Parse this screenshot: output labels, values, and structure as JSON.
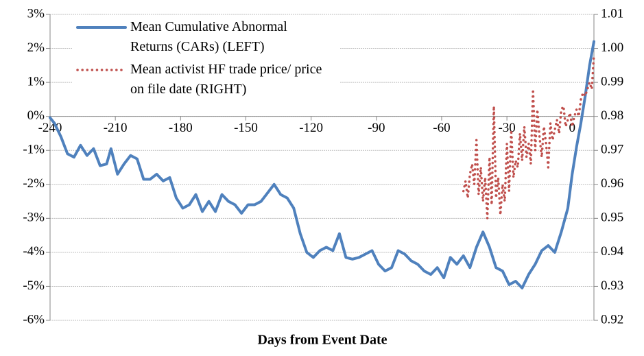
{
  "chart_data": {
    "type": "line",
    "x_label": "Days from Event Date",
    "xlim": [
      -240,
      10
    ],
    "xticks": [
      -240,
      -210,
      -180,
      -150,
      -120,
      -90,
      -60,
      -30,
      0
    ],
    "ylim": [
      -6,
      3
    ],
    "yticks": [
      {
        "value": -6,
        "label": "-6%"
      },
      {
        "value": -5,
        "label": "-5%"
      },
      {
        "value": -4,
        "label": "-4%"
      },
      {
        "value": -3,
        "label": "-3%"
      },
      {
        "value": -2,
        "label": "-2%"
      },
      {
        "value": -1,
        "label": "-1%"
      },
      {
        "value": 0,
        "label": "0%"
      },
      {
        "value": 1,
        "label": "1%"
      },
      {
        "value": 2,
        "label": "2%"
      },
      {
        "value": 3,
        "label": "3%"
      }
    ],
    "y2lim": [
      0.92,
      1.01
    ],
    "y2ticks": [
      0.92,
      0.93,
      0.94,
      0.95,
      0.96,
      0.97,
      0.98,
      0.99,
      {
        "value": 1,
        "label": "1.00"
      },
      1.01
    ],
    "grid": true,
    "legend": "upper left",
    "series": [
      {
        "name": "Mean Cumulative Abnormal Returns (CARs) (LEFT)",
        "color": "#4f81bd",
        "dash": "solid",
        "x": [
          -240,
          -238,
          -235,
          -232,
          -229,
          -226,
          -223,
          -220,
          -217,
          -214,
          -212,
          -209,
          -206,
          -203,
          -200,
          -197,
          -194,
          -191,
          -188,
          -185,
          -182,
          -179,
          -176,
          -173,
          -170,
          -167,
          -164,
          -161,
          -158,
          -155,
          -152,
          -149,
          -146,
          -143,
          -140,
          -137,
          -134,
          -131,
          -128,
          -125,
          -122,
          -119,
          -116,
          -113,
          -110,
          -107,
          -104,
          -101,
          -98,
          -95,
          -92,
          -89,
          -86,
          -83,
          -80,
          -77,
          -74,
          -71,
          -68,
          -65,
          -62,
          -59,
          -56,
          -53,
          -50,
          -47,
          -44,
          -41,
          -38,
          -35,
          -32,
          -29,
          -26,
          -23,
          -20,
          -17,
          -14,
          -11,
          -8,
          -5,
          -2,
          0,
          2,
          4,
          6,
          8,
          10
        ],
        "values": [
          -0.04,
          -0.2,
          -0.6,
          -1.1,
          -1.2,
          -0.85,
          -1.15,
          -0.95,
          -1.45,
          -1.4,
          -0.95,
          -1.7,
          -1.4,
          -1.15,
          -1.25,
          -1.85,
          -1.85,
          -1.7,
          -1.9,
          -1.8,
          -2.4,
          -2.7,
          -2.6,
          -2.3,
          -2.8,
          -2.5,
          -2.8,
          -2.3,
          -2.5,
          -2.6,
          -2.85,
          -2.6,
          -2.6,
          -2.5,
          -2.25,
          -2.0,
          -2.3,
          -2.4,
          -2.7,
          -3.45,
          -4.0,
          -4.15,
          -3.95,
          -3.85,
          -3.95,
          -3.45,
          -4.15,
          -4.2,
          -4.15,
          -4.05,
          -3.95,
          -4.35,
          -4.55,
          -4.45,
          -3.95,
          -4.05,
          -4.25,
          -4.35,
          -4.55,
          -4.65,
          -4.45,
          -4.75,
          -4.15,
          -4.35,
          -4.1,
          -4.45,
          -3.85,
          -3.4,
          -3.85,
          -4.45,
          -4.55,
          -4.95,
          -4.85,
          -5.05,
          -4.65,
          -4.35,
          -3.95,
          -3.8,
          -4.0,
          -3.4,
          -2.7,
          -1.7,
          -0.9,
          -0.2,
          0.6,
          1.5,
          2.2
        ]
      },
      {
        "name": "Mean activist HF trade price/ price on file date (RIGHT)",
        "color": "#c0504d",
        "dash": "dotted",
        "axis": "y2",
        "x": [
          -50,
          -49,
          -48,
          -47,
          -46,
          -45,
          -44,
          -43,
          -42,
          -41,
          -40,
          -39,
          -38,
          -37,
          -36,
          -35,
          -34,
          -33,
          -32,
          -31,
          -30,
          -29,
          -28,
          -27,
          -26,
          -25,
          -24,
          -23,
          -22,
          -21,
          -20,
          -19,
          -18,
          -17,
          -16,
          -15,
          -14,
          -13,
          -12,
          -11,
          -10,
          -9,
          -8,
          -7,
          -6,
          -5,
          -4,
          -3,
          -2,
          -1,
          0,
          1,
          2,
          3,
          4,
          5,
          6,
          7,
          8,
          9,
          10
        ],
        "values": [
          0.958,
          0.961,
          0.956,
          0.963,
          0.966,
          0.96,
          0.973,
          0.957,
          0.965,
          0.955,
          0.962,
          0.95,
          0.968,
          0.954,
          0.983,
          0.956,
          0.962,
          0.951,
          0.96,
          0.955,
          0.972,
          0.958,
          0.976,
          0.962,
          0.967,
          0.965,
          0.975,
          0.967,
          0.977,
          0.968,
          0.972,
          0.966,
          0.988,
          0.97,
          0.982,
          0.974,
          0.968,
          0.977,
          0.972,
          0.965,
          0.978,
          0.973,
          0.976,
          0.979,
          0.975,
          0.982,
          0.983,
          0.977,
          0.979,
          0.981,
          0.977,
          0.98,
          0.982,
          0.98,
          0.985,
          0.987,
          0.986,
          0.988,
          0.99,
          0.988,
          0.998
        ]
      }
    ]
  }
}
